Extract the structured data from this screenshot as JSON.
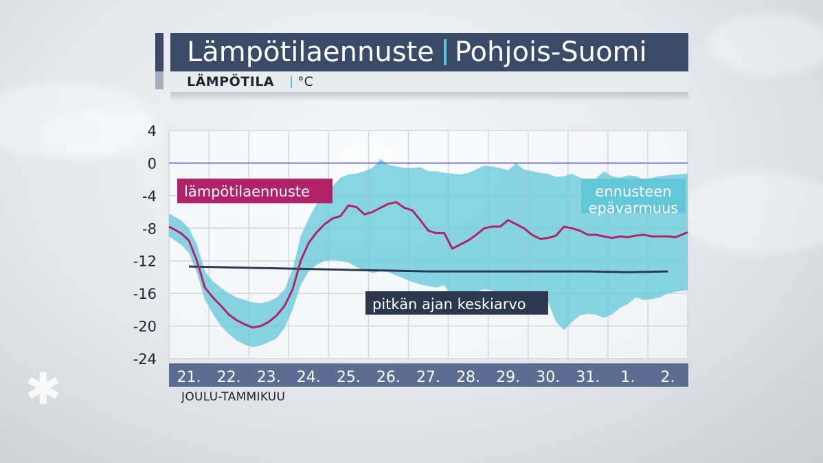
{
  "header": {
    "title": "Lämpötilaennuste",
    "region": "Pohjois-Suomi",
    "subtitle_label": "LÄMPÖTILA",
    "subtitle_unit": "°C"
  },
  "colors": {
    "forecast": "#b0236a",
    "average": "#2b3850",
    "uncertainty": "#63c7d9",
    "zero_line": "#4a5de0",
    "grid": "#d2d7dd",
    "axis_bar": "#5b6d90"
  },
  "chart_data": {
    "type": "line",
    "title": "Lämpötilaennuste",
    "ylabel": "°C",
    "xlabel": "JOULU-TAMMIKUU",
    "ylim": [
      -24,
      4
    ],
    "yticks": [
      4,
      0,
      -4,
      -8,
      -12,
      -16,
      -20,
      -24
    ],
    "xlim": [
      20.5,
      33.5
    ],
    "categories": [
      "21.",
      "22.",
      "23.",
      "24.",
      "25.",
      "26.",
      "27.",
      "28.",
      "29.",
      "30.",
      "31.",
      "1.",
      "2."
    ],
    "grid": true,
    "legend": [
      {
        "key": "forecast",
        "label": "lämpötilaennuste"
      },
      {
        "key": "average",
        "label": "pitkän ajan keskiarvo"
      },
      {
        "key": "uncertainty",
        "label": "ennusteen epävarmuus"
      }
    ],
    "series": [
      {
        "name": "lämpötilaennuste",
        "x": [
          20.5,
          20.8,
          21.0,
          21.2,
          21.4,
          21.6,
          21.8,
          22.0,
          22.2,
          22.4,
          22.6,
          22.8,
          23.0,
          23.2,
          23.4,
          23.6,
          23.8,
          24.0,
          24.2,
          24.4,
          24.6,
          24.8,
          25.0,
          25.2,
          25.4,
          25.6,
          25.8,
          26.0,
          26.2,
          26.4,
          26.6,
          26.8,
          27.0,
          27.2,
          27.4,
          27.6,
          27.8,
          28.0,
          28.2,
          28.4,
          28.6,
          28.8,
          29.0,
          29.2,
          29.4,
          29.6,
          29.8,
          30.0,
          30.2,
          30.4,
          30.6,
          30.8,
          31.0,
          31.2,
          31.4,
          31.6,
          31.8,
          32.0,
          32.2,
          32.4,
          32.6,
          32.8,
          33.0,
          33.2,
          33.5
        ],
        "values": [
          -7.8,
          -8.6,
          -9.5,
          -12.0,
          -15.3,
          -16.5,
          -17.5,
          -18.6,
          -19.3,
          -19.8,
          -20.2,
          -20.0,
          -19.5,
          -18.7,
          -17.5,
          -15.5,
          -12.0,
          -9.8,
          -8.5,
          -7.5,
          -6.8,
          -6.5,
          -5.2,
          -5.4,
          -6.3,
          -6.0,
          -5.5,
          -5.0,
          -4.8,
          -5.5,
          -5.8,
          -7.0,
          -8.3,
          -8.6,
          -8.6,
          -10.5,
          -10.0,
          -9.5,
          -8.8,
          -8.0,
          -7.8,
          -7.8,
          -7.0,
          -7.5,
          -8.0,
          -8.8,
          -9.3,
          -9.2,
          -8.9,
          -7.8,
          -8.0,
          -8.3,
          -8.8,
          -8.8,
          -9.0,
          -9.2,
          -9.0,
          -9.1,
          -8.9,
          -8.8,
          -9.0,
          -9.0,
          -9.0,
          -9.1,
          -8.5
        ]
      },
      {
        "name": "pitkän ajan keskiarvo",
        "x": [
          21.0,
          22.0,
          23.0,
          24.0,
          25.0,
          26.0,
          27.0,
          28.0,
          29.0,
          30.0,
          31.0,
          32.0,
          33.0
        ],
        "values": [
          -12.7,
          -12.8,
          -12.9,
          -13.0,
          -13.1,
          -13.2,
          -13.3,
          -13.3,
          -13.3,
          -13.3,
          -13.3,
          -13.4,
          -13.3
        ]
      }
    ],
    "band": {
      "name": "ennusteen epävarmuus",
      "x": [
        20.5,
        20.8,
        21.0,
        21.2,
        21.4,
        21.6,
        21.8,
        22.0,
        22.2,
        22.4,
        22.6,
        22.8,
        23.0,
        23.2,
        23.4,
        23.6,
        23.8,
        24.0,
        24.2,
        24.4,
        24.6,
        24.8,
        25.0,
        25.2,
        25.4,
        25.6,
        25.8,
        26.0,
        26.2,
        26.4,
        26.6,
        26.8,
        27.0,
        27.2,
        27.4,
        27.6,
        27.8,
        28.0,
        28.2,
        28.4,
        28.6,
        28.8,
        29.0,
        29.2,
        29.4,
        29.6,
        29.8,
        30.0,
        30.2,
        30.4,
        30.6,
        30.8,
        31.0,
        31.2,
        31.4,
        31.6,
        31.8,
        32.0,
        32.2,
        32.4,
        32.6,
        32.8,
        33.0,
        33.2,
        33.5
      ],
      "upper": [
        -6.2,
        -7.0,
        -8.0,
        -10.0,
        -13.3,
        -14.5,
        -15.3,
        -16.0,
        -16.5,
        -16.8,
        -17.1,
        -17.2,
        -17.0,
        -16.5,
        -15.5,
        -13.0,
        -9.0,
        -6.8,
        -5.0,
        -3.6,
        -2.8,
        -1.8,
        -1.4,
        -1.3,
        -1.0,
        -0.6,
        0.5,
        -0.2,
        -0.4,
        -0.6,
        -0.6,
        -0.5,
        -1.0,
        -1.0,
        -1.2,
        -1.3,
        -1.4,
        -1.2,
        -0.8,
        -0.3,
        -0.4,
        -0.6,
        -0.9,
        0.0,
        -0.8,
        -1.0,
        -1.2,
        -1.3,
        -1.7,
        -1.6,
        -1.3,
        -1.8,
        -2.2,
        -1.9,
        -1.0,
        -1.6,
        -1.8,
        -1.5,
        -1.6,
        -2.0,
        -1.8,
        -1.6,
        -1.5,
        -1.4,
        -1.3
      ],
      "lower": [
        -9.0,
        -10.0,
        -11.0,
        -13.5,
        -16.8,
        -18.5,
        -20.0,
        -21.0,
        -21.8,
        -22.3,
        -22.6,
        -22.4,
        -22.0,
        -21.5,
        -20.2,
        -18.0,
        -15.0,
        -13.3,
        -12.5,
        -12.0,
        -11.9,
        -12.0,
        -12.2,
        -12.8,
        -13.2,
        -13.5,
        -13.3,
        -13.4,
        -13.8,
        -14.2,
        -14.6,
        -14.9,
        -15.1,
        -15.3,
        -15.0,
        -16.5,
        -16.8,
        -16.7,
        -15.8,
        -15.5,
        -15.6,
        -17.0,
        -18.0,
        -17.7,
        -18.2,
        -17.6,
        -17.3,
        -17.0,
        -19.5,
        -20.5,
        -19.5,
        -18.7,
        -18.5,
        -18.6,
        -19.0,
        -18.6,
        -17.8,
        -17.3,
        -16.5,
        -16.8,
        -16.7,
        -16.5,
        -16.0,
        -15.8,
        -15.6
      ]
    }
  }
}
